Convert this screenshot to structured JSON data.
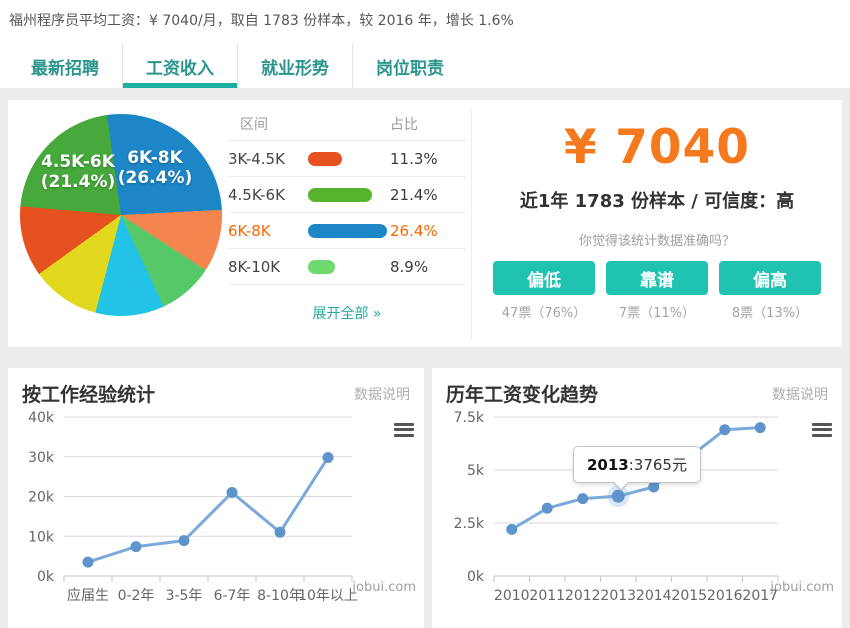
{
  "header": {
    "summary": "福州程序员平均工资：¥ 7040/月，取自 1783 份样本，较 2016 年，增长 1.6%",
    "tabs": [
      {
        "name": "latest-jobs",
        "label": "最新招聘",
        "active": false
      },
      {
        "name": "salary-income",
        "label": "工资收入",
        "active": true
      },
      {
        "name": "employment-trend",
        "label": "就业形势",
        "active": false
      },
      {
        "name": "job-duties",
        "label": "岗位职责",
        "active": false
      }
    ]
  },
  "salary_card": {
    "table": {
      "headers": [
        "区间",
        "占比"
      ],
      "rows": [
        {
          "range": "3K-4.5K",
          "percent": "11.3%",
          "bar_color": "#e5521f",
          "highlight": false
        },
        {
          "range": "4.5K-6K",
          "percent": "21.4%",
          "bar_color": "#57b32e",
          "highlight": false
        },
        {
          "range": "6K-8K",
          "percent": "26.4%",
          "bar_color": "#1d86c6",
          "highlight": true
        },
        {
          "range": "8K-10K",
          "percent": "8.9%",
          "bar_color": "#6fd96f",
          "highlight": false
        }
      ],
      "expand_link": "展开全部 »"
    },
    "stats": {
      "amount": "¥ 7040",
      "sample_info": "近1年 1783 份样本 / 可信度：高",
      "question": "你觉得该统计数据准确吗？",
      "votes": [
        {
          "name": "vote-low",
          "label": "偏低",
          "count": "47票（76%）"
        },
        {
          "name": "vote-accurate",
          "label": "靠谱",
          "count": "7票（11%）"
        },
        {
          "name": "vote-high",
          "label": "偏高",
          "count": "8票（13%）"
        }
      ],
      "accent_color": "#20c2b2",
      "amount_color": "#f57a1f"
    }
  },
  "common": {
    "data_note": "数据说明",
    "watermark": "jobui.com"
  },
  "chart_data": [
    {
      "type": "pie",
      "start_angle_deg": -8,
      "segments": [
        {
          "label": "6K-8K",
          "percent": 26.4,
          "color": "#1d86c6"
        },
        {
          "label": "",
          "percent": 10.0,
          "color": "#f5854e"
        },
        {
          "label": "8K-10K",
          "percent": 8.9,
          "color": "#55c968"
        },
        {
          "label": "",
          "percent": 11.0,
          "color": "#23c3e8"
        },
        {
          "label": "",
          "percent": 11.0,
          "color": "#e2d91e"
        },
        {
          "label": "3K-4.5K",
          "percent": 11.3,
          "color": "#e5521f"
        },
        {
          "label": "4.5K-6K",
          "percent": 21.4,
          "color": "#47a83c"
        }
      ],
      "labels": [
        {
          "line1": "4.5K-6K",
          "line2": "(21.4%)"
        },
        {
          "line1": "6K-8K",
          "line2": "(26.4%)"
        }
      ]
    },
    {
      "type": "line",
      "title": "按工作经验统计",
      "categories": [
        "应届生",
        "0-2年",
        "3-5年",
        "6-7年",
        "8-10年",
        "10年以上"
      ],
      "values": [
        3500,
        7400,
        8900,
        21000,
        11000,
        29800
      ],
      "ylim": [
        0,
        40000
      ],
      "yticks": [
        0,
        10000,
        20000,
        30000,
        40000
      ],
      "ytick_labels": [
        "0k",
        "10k",
        "20k",
        "30k",
        "40k"
      ],
      "grid": true,
      "legend": "none",
      "line_color": "#7aa9dc",
      "marker_color": "#5e93cb",
      "highlight_index": -1
    },
    {
      "type": "line",
      "title": "历年工资变化趋势",
      "categories": [
        "2010",
        "2011",
        "2012",
        "2013",
        "2014",
        "2015",
        "2016",
        "2017"
      ],
      "values": [
        2200,
        3200,
        3650,
        3765,
        4200,
        5600,
        6900,
        7000
      ],
      "ylim": [
        0,
        7500
      ],
      "yticks": [
        0,
        2500,
        5000,
        7500
      ],
      "ytick_labels": [
        "0k",
        "2.5k",
        "5k",
        "7.5k"
      ],
      "grid": true,
      "legend": "none",
      "line_color": "#7aa9dc",
      "marker_color": "#5e93cb",
      "highlight_index": 3,
      "tooltip": {
        "year": "2013",
        "rest": ":3765元"
      }
    }
  ]
}
